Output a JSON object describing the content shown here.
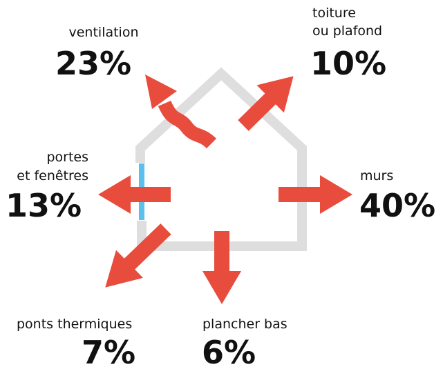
{
  "items": [
    {
      "label": [
        "ventilation"
      ],
      "value": "23%"
    },
    {
      "label": [
        "toiture",
        "ou plafond"
      ],
      "value": "10%"
    },
    {
      "label": [
        "portes",
        "et fenêtres"
      ],
      "value": "13%"
    },
    {
      "label": [
        "murs"
      ],
      "value": "40%"
    },
    {
      "label": [
        "ponts thermiques"
      ],
      "value": "7%"
    },
    {
      "label": [
        "plancher bas"
      ],
      "value": "6%"
    }
  ]
}
